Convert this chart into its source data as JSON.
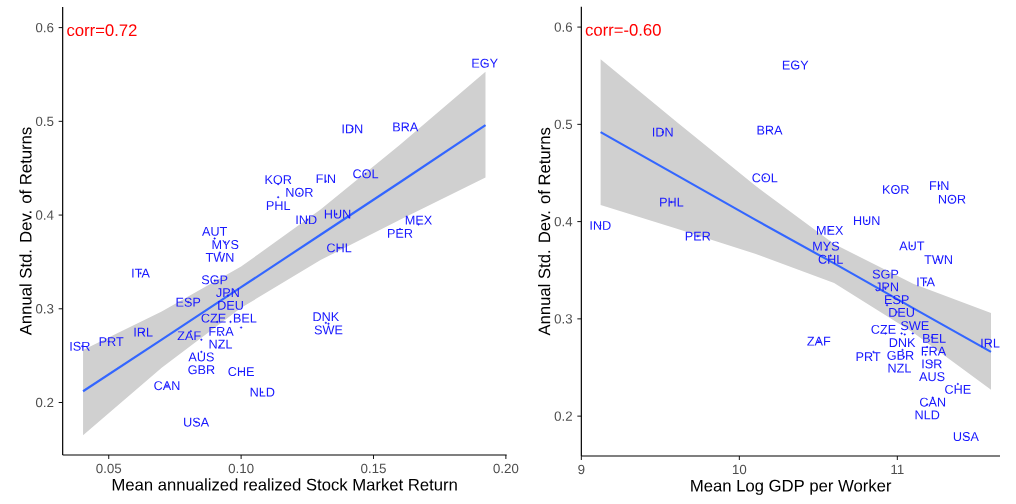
{
  "chart_data": [
    {
      "type": "scatter",
      "xlabel": "Mean annualized realized Stock Market Return",
      "ylabel": "Annual Std. Dev. of Returns",
      "xlim": [
        0.0326,
        0.2003
      ],
      "ylim": [
        0.144,
        0.622
      ],
      "xticks": [
        {
          "value": 0.05,
          "label": "0.05"
        },
        {
          "value": 0.1,
          "label": "0.10"
        },
        {
          "value": 0.15,
          "label": "0.15"
        },
        {
          "value": 0.2,
          "label": "0.20"
        }
      ],
      "yticks": [
        0.2,
        0.3,
        0.4,
        0.5,
        0.6
      ],
      "series": [
        {
          "type": "scatter",
          "marker": "circle",
          "color": "#1a1aff",
          "x": [
            0.192,
            0.142,
            0.162,
            0.147,
            0.132,
            0.114,
            0.122,
            0.114,
            0.125,
            0.136,
            0.167,
            0.16,
            0.137,
            0.09,
            0.094,
            0.092,
            0.062,
            0.09,
            0.095,
            0.08,
            0.091,
            0.096,
            0.132,
            0.133,
            0.1,
            0.081,
            0.063,
            0.092,
            0.05,
            0.085,
            0.092,
            0.04,
            0.085,
            0.1,
            0.072,
            0.108,
            0.083
          ],
          "values": [
            0.562,
            0.492,
            0.494,
            0.444,
            0.436,
            0.433,
            0.423,
            0.419,
            0.395,
            0.401,
            0.39,
            0.385,
            0.365,
            0.375,
            0.371,
            0.36,
            0.338,
            0.33,
            0.314,
            0.307,
            0.286,
            0.286,
            0.285,
            0.284,
            0.28,
            0.276,
            0.275,
            0.272,
            0.265,
            0.267,
            0.26,
            0.26,
            0.254,
            0.233,
            0.218,
            0.211,
            0.179
          ],
          "value_labels": [
            "EGY",
            "IDN",
            "BRA",
            "COL",
            "FIN",
            "KOR",
            "NOR",
            "PHL",
            "IND",
            "HUN",
            "MEX",
            "PER",
            "CHL",
            "AUT",
            "MYS",
            "TWN",
            "ITA",
            "SGP",
            "JPN",
            "ESP",
            "CZE",
            "DEU",
            "DNK",
            "SWE",
            "BEL",
            "ZAF",
            "IRL",
            "FRA",
            "PRT",
            "GBR",
            "NZL",
            "ISR",
            "AUS",
            "CHE",
            "CAN",
            "NLD",
            "USA"
          ]
        },
        {
          "type": "line",
          "color": "#3366ff",
          "x": [
            0.0403,
            0.07,
            0.1,
            0.13,
            0.16,
            0.1923
          ],
          "values": [
            0.212,
            0.267,
            0.323,
            0.379,
            0.435,
            0.496
          ],
          "lower": [
            0.165,
            0.237,
            0.301,
            0.352,
            0.395,
            0.44
          ],
          "upper": [
            0.256,
            0.297,
            0.345,
            0.406,
            0.475,
            0.553
          ]
        }
      ],
      "annotations": [
        "corr=0.72"
      ]
    },
    {
      "type": "scatter",
      "xlabel": "Mean Log GDP per Worker",
      "ylabel": "Annual Std. Dev. of Returns",
      "xlim": [
        9,
        11.65
      ],
      "ylim": [
        0.159,
        0.621
      ],
      "xticks": [
        9,
        10,
        11
      ],
      "yticks": [
        0.2,
        0.3,
        0.4,
        0.5,
        0.6
      ],
      "series": [
        {
          "type": "scatter",
          "marker": "circle",
          "color": "#1a1aff",
          "x": [
            10.354,
            9.515,
            10.191,
            10.161,
            11.265,
            10.99,
            11.346,
            9.57,
            9.12,
            10.806,
            10.572,
            9.737,
            10.578,
            11.092,
            10.548,
            11.261,
            11.179,
            10.925,
            10.935,
            10.996,
            10.925,
            11.027,
            11.047,
            11.098,
            11.22,
            10.503,
            11.587,
            11.189,
            10.849,
            11.033,
            11.041,
            11.179,
            11.22,
            11.383,
            11.224,
            11.189,
            11.434
          ],
          "values": [
            0.561,
            0.492,
            0.494,
            0.445,
            0.437,
            0.433,
            0.423,
            0.42,
            0.396,
            0.401,
            0.391,
            0.385,
            0.365,
            0.375,
            0.371,
            0.361,
            0.338,
            0.331,
            0.314,
            0.307,
            0.285,
            0.285,
            0.284,
            0.285,
            0.281,
            0.277,
            0.275,
            0.271,
            0.266,
            0.268,
            0.261,
            0.263,
            0.255,
            0.233,
            0.219,
            0.212,
            0.179
          ],
          "value_labels": [
            "EGY",
            "IDN",
            "BRA",
            "COL",
            "FIN",
            "KOR",
            "NOR",
            "PHL",
            "IND",
            "HUN",
            "MEX",
            "PER",
            "CHL",
            "AUT",
            "MYS",
            "TWN",
            "ITA",
            "SGP",
            "JPN",
            "ESP",
            "CZE",
            "DEU",
            "DNK",
            "SWE",
            "BEL",
            "ZAF",
            "IRL",
            "FRA",
            "PRT",
            "GBR",
            "NZL",
            "ISR",
            "AUS",
            "CHE",
            "CAN",
            "NLD",
            "USA"
          ]
        },
        {
          "type": "line",
          "color": "#3366ff",
          "x": [
            9.122,
            9.6,
            10.1,
            10.6,
            11.1,
            11.593
          ],
          "values": [
            0.492,
            0.448,
            0.402,
            0.357,
            0.311,
            0.266
          ],
          "lower": [
            0.417,
            0.393,
            0.367,
            0.337,
            0.286,
            0.227
          ],
          "upper": [
            0.567,
            0.503,
            0.437,
            0.377,
            0.336,
            0.306
          ]
        }
      ],
      "annotations": [
        "corr=-0.60"
      ]
    }
  ]
}
